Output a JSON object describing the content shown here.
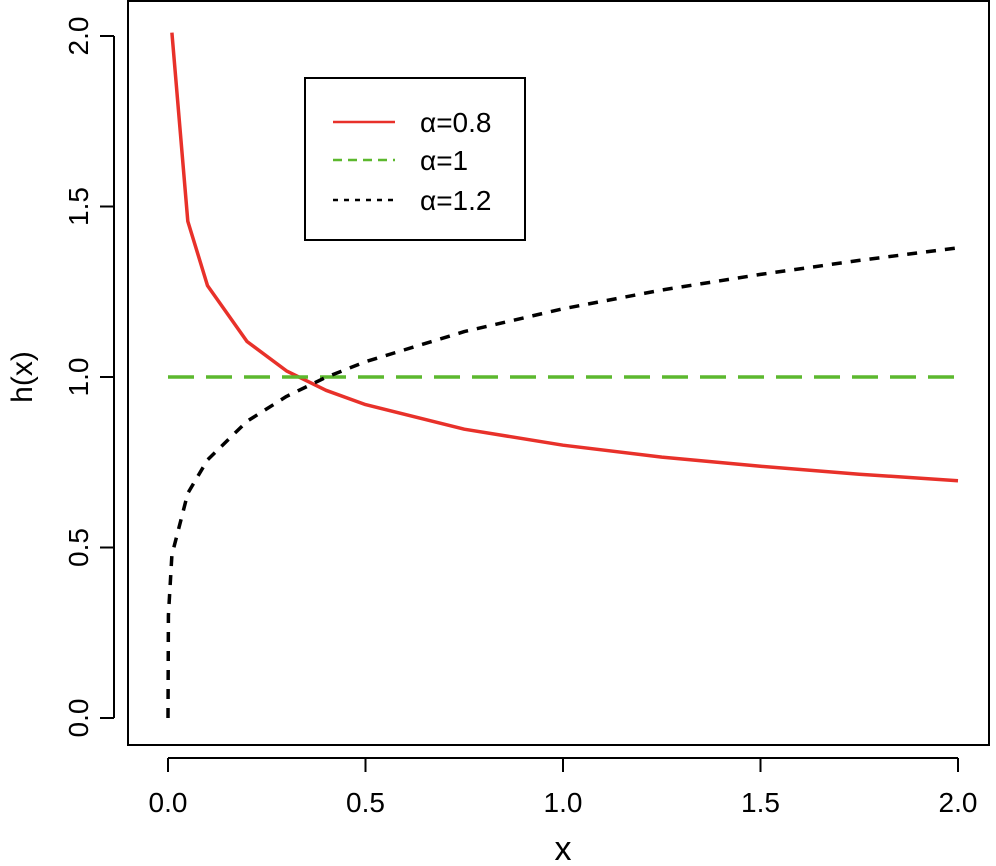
{
  "chart_data": {
    "type": "line",
    "title": "",
    "xlabel": "x",
    "ylabel": "h(x)",
    "xlim": [
      0,
      2
    ],
    "ylim": [
      0,
      2
    ],
    "xticks": [
      "0.0",
      "0.5",
      "1.0",
      "1.5",
      "2.0"
    ],
    "yticks": [
      "0.0",
      "0.5",
      "1.0",
      "1.5",
      "2.0"
    ],
    "grid": false,
    "legend_position": "top-left",
    "series": [
      {
        "name": "α=0.8",
        "color": "#e8312a",
        "style": "solid",
        "x": [
          0.01,
          0.05,
          0.1,
          0.2,
          0.3,
          0.4,
          0.5,
          0.75,
          1.0,
          1.25,
          1.5,
          1.75,
          2.0
        ],
        "y": [
          2.01,
          1.457,
          1.268,
          1.104,
          1.018,
          0.961,
          0.919,
          0.847,
          0.8,
          0.765,
          0.738,
          0.715,
          0.696
        ]
      },
      {
        "name": "α=1",
        "color": "#5cb82e",
        "style": "dashed",
        "x": [
          0,
          2
        ],
        "y": [
          1,
          1
        ]
      },
      {
        "name": "α=1.2",
        "color": "#000000",
        "style": "dotted",
        "x": [
          0,
          0.001,
          0.01,
          0.05,
          0.1,
          0.2,
          0.3,
          0.4,
          0.5,
          0.75,
          1.0,
          1.25,
          1.5,
          1.75,
          2.0
        ],
        "y": [
          0,
          0.301,
          0.478,
          0.659,
          0.757,
          0.87,
          0.943,
          0.999,
          1.045,
          1.133,
          1.2,
          1.255,
          1.301,
          1.342,
          1.379
        ]
      }
    ]
  }
}
